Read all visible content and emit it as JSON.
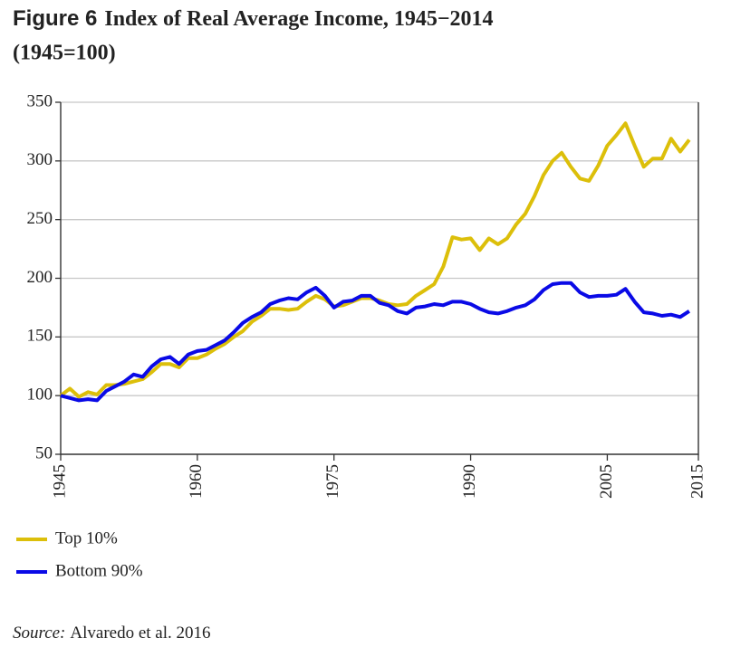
{
  "chart_data": {
    "type": "line",
    "figure_label": "Figure 6",
    "title": "Index of Real Average Income, 1945−2014",
    "subtitle": "(1945=100)",
    "source_label": "Source:",
    "source": "Alvaredo et al. 2016",
    "x": [
      1945,
      1946,
      1947,
      1948,
      1949,
      1950,
      1951,
      1952,
      1953,
      1954,
      1955,
      1956,
      1957,
      1958,
      1959,
      1960,
      1961,
      1962,
      1963,
      1964,
      1965,
      1966,
      1967,
      1968,
      1969,
      1970,
      1971,
      1972,
      1973,
      1974,
      1975,
      1976,
      1977,
      1978,
      1979,
      1980,
      1981,
      1982,
      1983,
      1984,
      1985,
      1986,
      1987,
      1988,
      1989,
      1990,
      1991,
      1992,
      1993,
      1994,
      1995,
      1996,
      1997,
      1998,
      1999,
      2000,
      2001,
      2002,
      2003,
      2004,
      2005,
      2006,
      2007,
      2008,
      2009,
      2010,
      2011,
      2012,
      2013,
      2014
    ],
    "series": [
      {
        "name": "Top 10%",
        "color": "#dcbf0a",
        "values": [
          100,
          106,
          99,
          103,
          101,
          109,
          109,
          110,
          112,
          114,
          120,
          127,
          127,
          124,
          132,
          132,
          135,
          140,
          144,
          150,
          155,
          163,
          168,
          174,
          174,
          173,
          174,
          180,
          185,
          182,
          176,
          177,
          180,
          183,
          183,
          181,
          178,
          177,
          178,
          185,
          190,
          195,
          210,
          235,
          233,
          234,
          224,
          234,
          229,
          234,
          246,
          255,
          270,
          288,
          300,
          307,
          295,
          285,
          283,
          296,
          313,
          322,
          332,
          313,
          295,
          302,
          302,
          319,
          308,
          318
        ]
      },
      {
        "name": "Bottom 90%",
        "color": "#0a0ae6",
        "values": [
          100,
          98,
          96,
          97,
          96,
          104,
          108,
          112,
          118,
          116,
          125,
          131,
          133,
          127,
          135,
          138,
          139,
          143,
          147,
          154,
          162,
          167,
          171,
          178,
          181,
          183,
          182,
          188,
          192,
          185,
          175,
          180,
          181,
          185,
          185,
          179,
          177,
          172,
          170,
          175,
          176,
          178,
          177,
          180,
          180,
          178,
          174,
          171,
          170,
          172,
          175,
          177,
          182,
          190,
          195,
          196,
          196,
          188,
          184,
          185,
          185,
          186,
          191,
          180,
          171,
          170,
          168,
          169,
          167,
          172
        ]
      }
    ],
    "xlim": [
      1945,
      2015
    ],
    "xticks": [
      1945,
      1960,
      1975,
      1990,
      2005,
      2015
    ],
    "ylim": [
      50,
      350
    ],
    "yticks": [
      50,
      100,
      150,
      200,
      250,
      300,
      350
    ],
    "grid": true,
    "legend": "bottom-left"
  }
}
